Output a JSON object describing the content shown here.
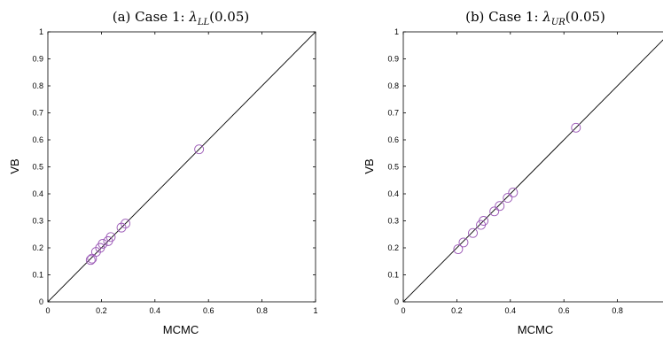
{
  "chart_data": [
    {
      "type": "scatter",
      "title": "(a) Case 1: λ_LL(0.05)",
      "title_parts": {
        "prefix": "(a) Case 1: ",
        "symbol": "λ",
        "subscript": "LL",
        "suffix": "(0.05)"
      },
      "xlabel": "MCMC",
      "ylabel": "VB",
      "xlim": [
        0,
        1
      ],
      "ylim": [
        0,
        1
      ],
      "x_ticks": [
        "0",
        "0.2",
        "0.4",
        "0.6",
        "0.8",
        "1"
      ],
      "y_ticks": [
        "0",
        "0.1",
        "0.2",
        "0.3",
        "0.4",
        "0.5",
        "0.6",
        "0.7",
        "0.8",
        "0.9",
        "1"
      ],
      "reference_line": "y = x",
      "marker": "circle",
      "marker_color": "#9b59b6",
      "grid": false,
      "points": [
        {
          "x": 0.16,
          "y": 0.155
        },
        {
          "x": 0.165,
          "y": 0.16
        },
        {
          "x": 0.18,
          "y": 0.185
        },
        {
          "x": 0.195,
          "y": 0.2
        },
        {
          "x": 0.205,
          "y": 0.215
        },
        {
          "x": 0.225,
          "y": 0.225
        },
        {
          "x": 0.235,
          "y": 0.24
        },
        {
          "x": 0.275,
          "y": 0.275
        },
        {
          "x": 0.29,
          "y": 0.29
        },
        {
          "x": 0.565,
          "y": 0.565
        }
      ]
    },
    {
      "type": "scatter",
      "title": "(b) Case 1: λ_UR(0.05)",
      "title_parts": {
        "prefix": "(b) Case 1: ",
        "symbol": "λ",
        "subscript": "UR",
        "suffix": "(0.05)"
      },
      "xlabel": "MCMC",
      "ylabel": "VB",
      "xlim": [
        0,
        1
      ],
      "ylim": [
        0,
        1
      ],
      "x_ticks": [
        "0",
        "0.2",
        "0.4",
        "0.6",
        "0.8"
      ],
      "y_ticks": [
        "0",
        "0.1",
        "0.2",
        "0.3",
        "0.4",
        "0.5",
        "0.6",
        "0.7",
        "0.8",
        "0.9",
        "1"
      ],
      "reference_line": "y = x",
      "marker": "circle",
      "marker_color": "#9b59b6",
      "grid": false,
      "points": [
        {
          "x": 0.205,
          "y": 0.195
        },
        {
          "x": 0.225,
          "y": 0.22
        },
        {
          "x": 0.26,
          "y": 0.255
        },
        {
          "x": 0.29,
          "y": 0.285
        },
        {
          "x": 0.3,
          "y": 0.3
        },
        {
          "x": 0.34,
          "y": 0.335
        },
        {
          "x": 0.36,
          "y": 0.355
        },
        {
          "x": 0.39,
          "y": 0.385
        },
        {
          "x": 0.41,
          "y": 0.405
        },
        {
          "x": 0.645,
          "y": 0.645
        }
      ]
    }
  ]
}
